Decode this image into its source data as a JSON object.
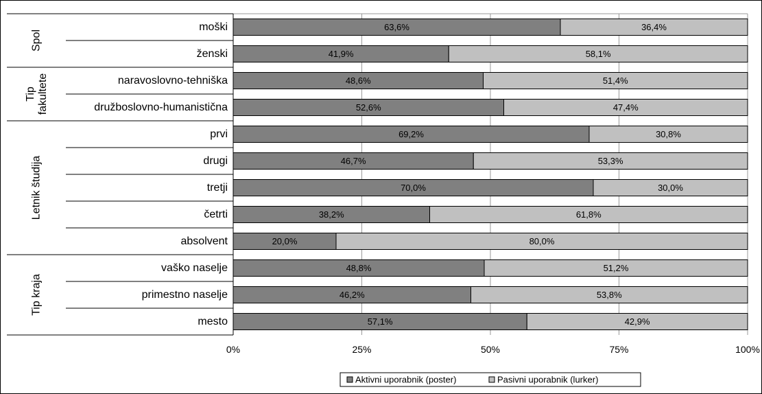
{
  "chart_data": {
    "type": "bar",
    "orientation": "horizontal",
    "stacking": "percent",
    "groups": [
      {
        "label": "Spol",
        "items": [
          {
            "label": "moški",
            "values": [
              63.6,
              36.4
            ]
          },
          {
            "label": "ženski",
            "values": [
              41.9,
              58.1
            ]
          }
        ]
      },
      {
        "label": "Tip fakultete",
        "items": [
          {
            "label": "naravoslovno-tehniška",
            "values": [
              48.6,
              51.4
            ]
          },
          {
            "label": "družboslovno-humanistična",
            "values": [
              52.6,
              47.4
            ]
          }
        ]
      },
      {
        "label": "Letnik študija",
        "items": [
          {
            "label": "prvi",
            "values": [
              69.2,
              30.8
            ]
          },
          {
            "label": "drugi",
            "values": [
              46.7,
              53.3
            ]
          },
          {
            "label": "tretji",
            "values": [
              70.0,
              30.0
            ]
          },
          {
            "label": "četrti",
            "values": [
              38.2,
              61.8
            ]
          },
          {
            "label": "absolvent",
            "values": [
              20.0,
              80.0
            ]
          }
        ]
      },
      {
        "label": "Tip kraja",
        "items": [
          {
            "label": "vaško naselje",
            "values": [
              48.8,
              51.2
            ]
          },
          {
            "label": "primestno naselje",
            "values": [
              46.2,
              53.8
            ]
          },
          {
            "label": "mesto",
            "values": [
              57.1,
              42.9
            ]
          }
        ]
      }
    ],
    "series": [
      {
        "name": "Aktivni uporabnik (poster)",
        "color": "#808080"
      },
      {
        "name": "Pasivni uporabnik (lurker)",
        "color": "#c0c0c0"
      }
    ],
    "x_ticks": [
      "0%",
      "25%",
      "50%",
      "75%",
      "100%"
    ],
    "xlim": [
      0,
      100
    ],
    "grid": true,
    "legend_position": "bottom"
  }
}
